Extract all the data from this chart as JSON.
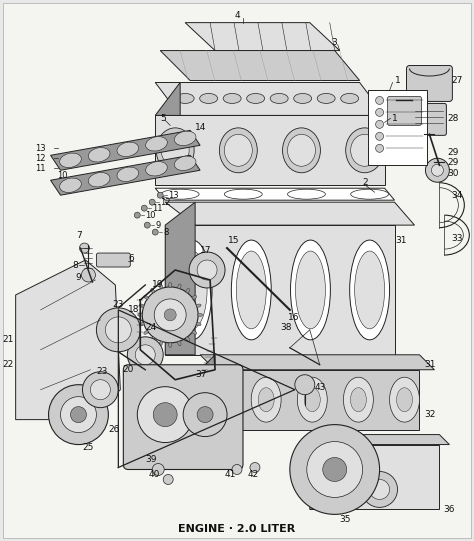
{
  "title": "ENGINE · 2.0 LITER",
  "title_fontsize": 8,
  "title_fontweight": "bold",
  "background_color": "#ffffff",
  "fig_width": 4.74,
  "fig_height": 5.41,
  "dpi": 100,
  "text_color": "#111111",
  "line_color": "#222222",
  "fig_bg": "#e8e8e8"
}
